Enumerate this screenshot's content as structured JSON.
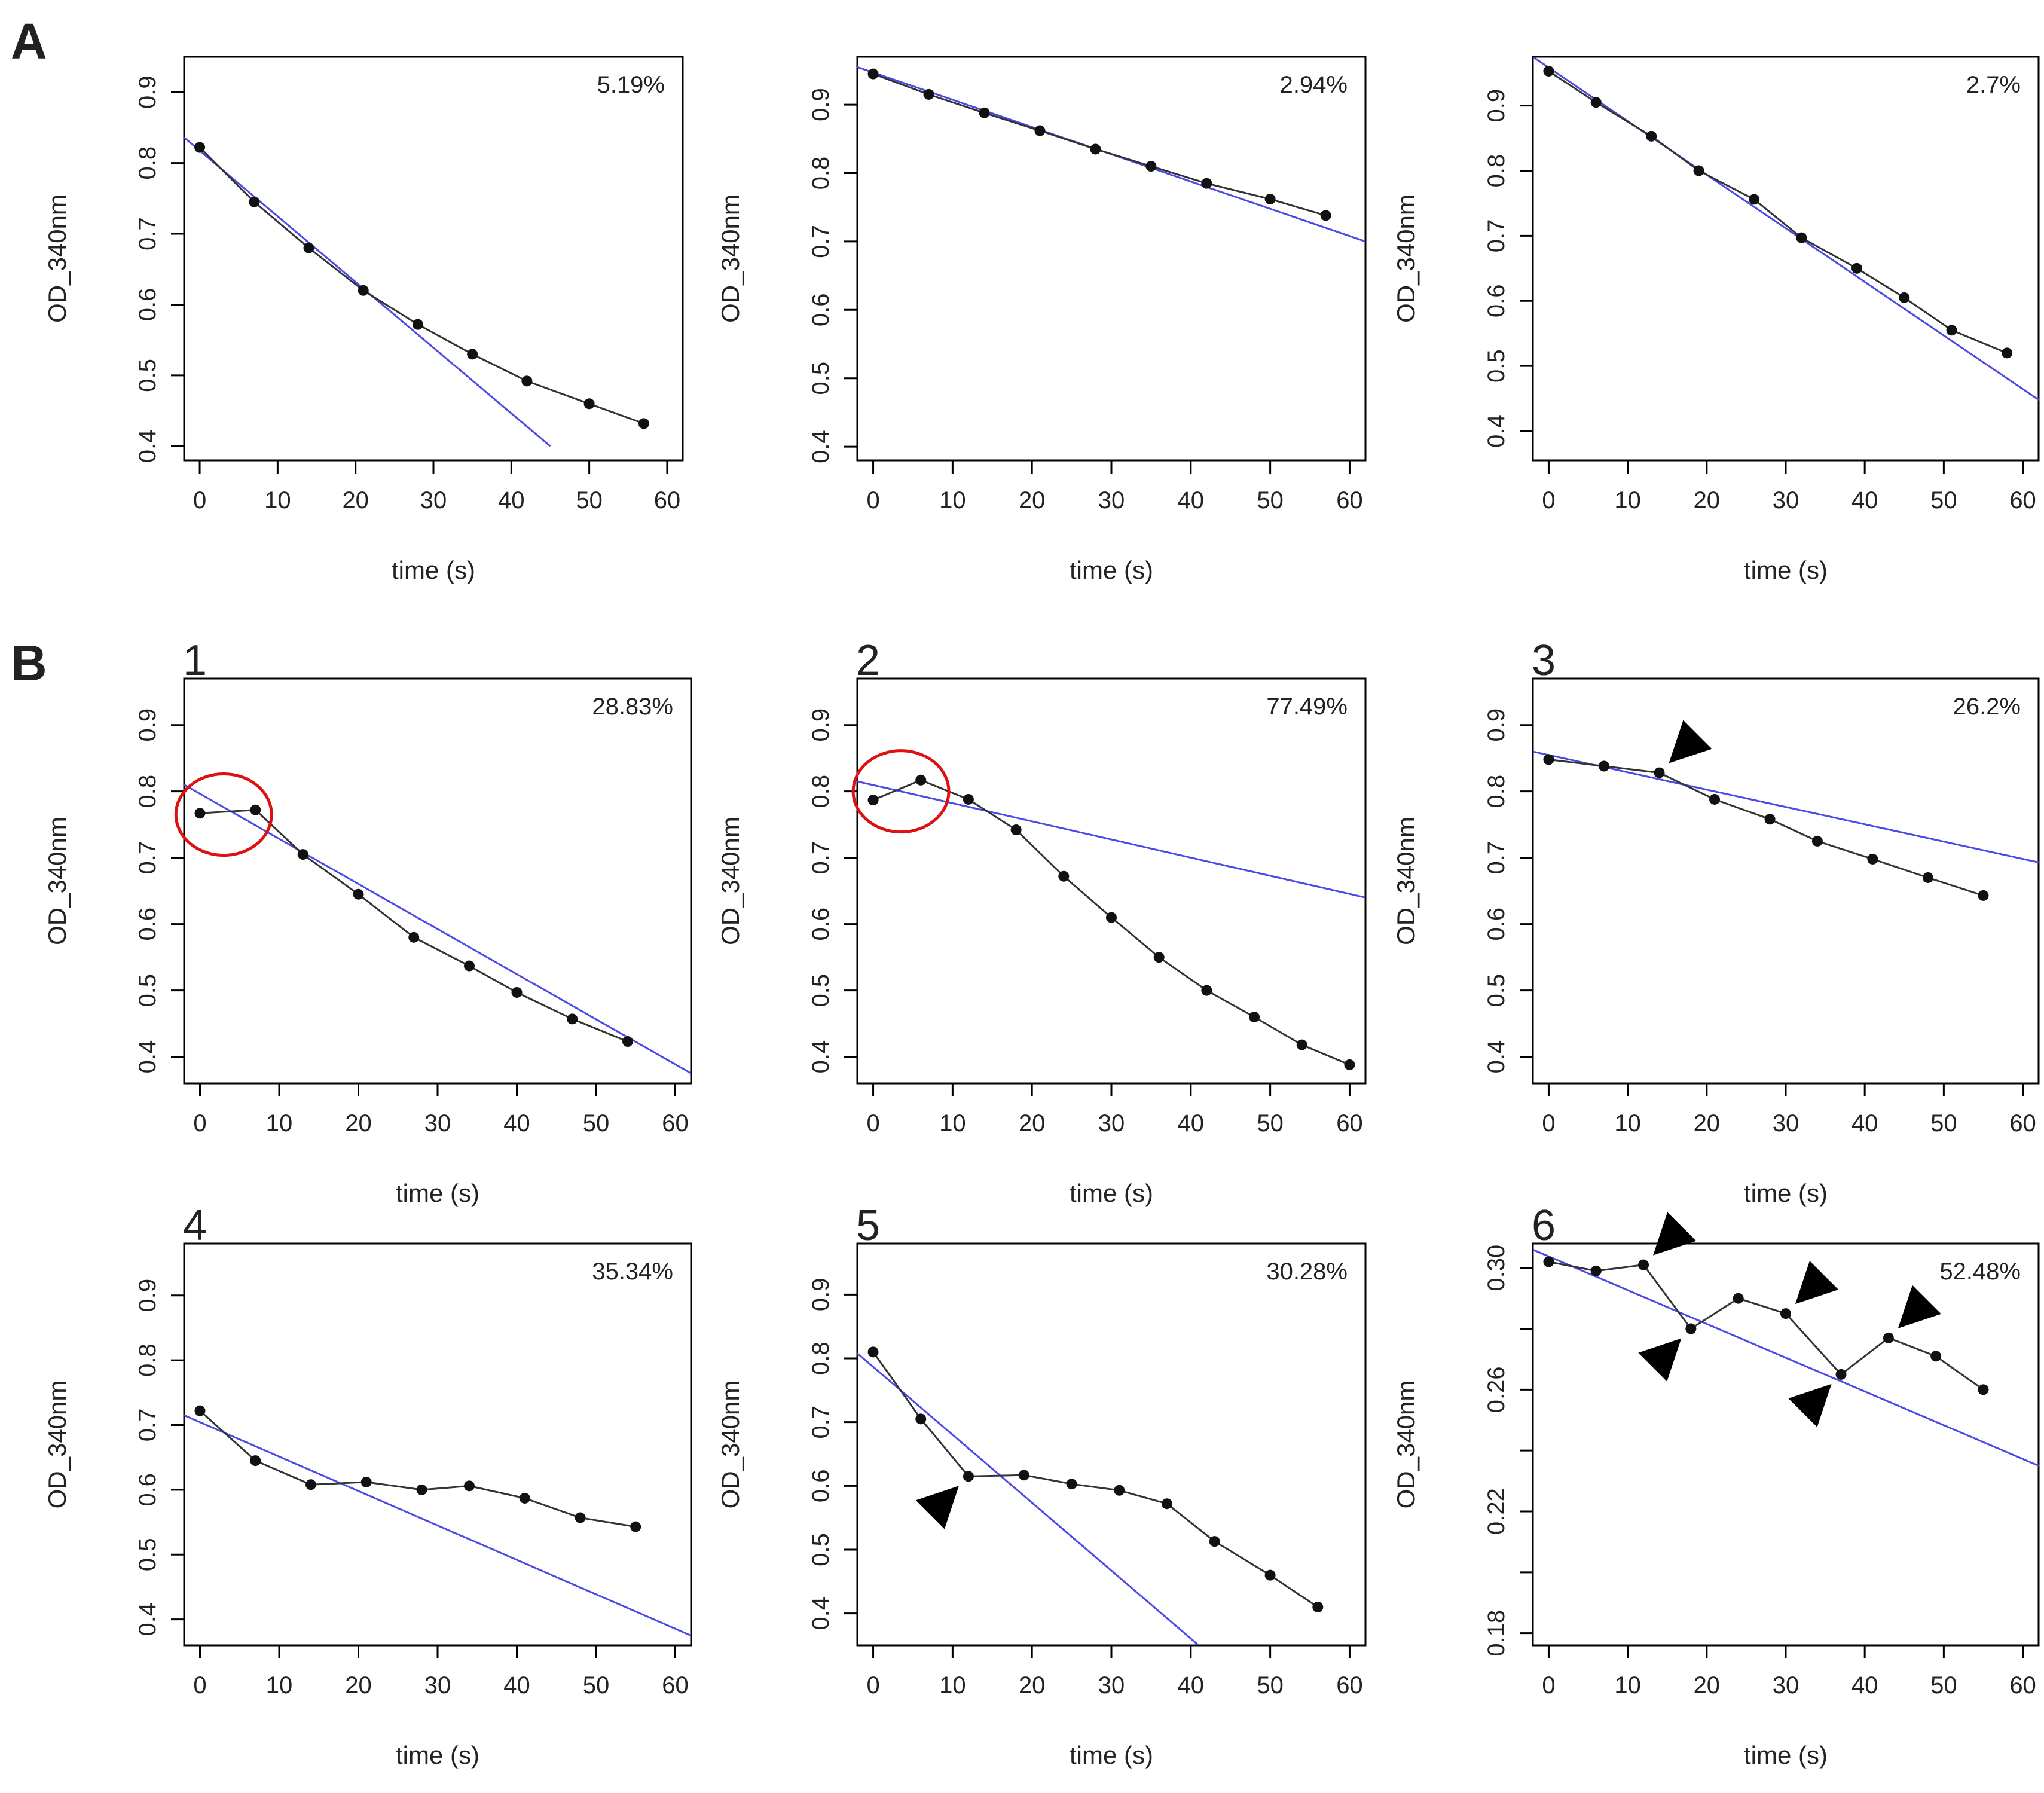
{
  "figure": {
    "section_labels": [
      "A",
      "B"
    ],
    "colors": {
      "fit_line": "#4a4ae6",
      "data_line": "#333333",
      "point": "#111111",
      "circle": "#dd1111",
      "arrowhead": "#000000",
      "frame": "#000000"
    }
  },
  "chart_data": [
    {
      "type": "line",
      "section": "A",
      "panel_number": "",
      "xlabel": "time (s)",
      "ylabel": "OD_340nm",
      "annotation": "5.19%",
      "xlim": [
        -2,
        62
      ],
      "ylim": [
        0.38,
        0.95
      ],
      "xticks": [
        0,
        10,
        20,
        30,
        40,
        50,
        60
      ],
      "yticks": [
        0.4,
        0.5,
        0.6,
        0.7,
        0.8,
        0.9
      ],
      "ytick_labels": [
        "0.4",
        "0.5",
        "0.6",
        "0.7",
        "0.8",
        "0.9"
      ],
      "series": [
        {
          "x": [
            0,
            7,
            14,
            21,
            28,
            35,
            42,
            50,
            57
          ],
          "y": [
            0.822,
            0.745,
            0.68,
            0.62,
            0.572,
            0.53,
            0.492,
            0.46,
            0.432
          ]
        }
      ],
      "fit_line": {
        "x": [
          -2,
          45
        ],
        "y": [
          0.836,
          0.4
        ]
      },
      "red_circles": [],
      "arrowheads": []
    },
    {
      "type": "line",
      "section": "A",
      "panel_number": "",
      "xlabel": "time (s)",
      "ylabel": "OD_340nm",
      "annotation": "2.94%",
      "xlim": [
        -2,
        62
      ],
      "ylim": [
        0.38,
        0.97
      ],
      "xticks": [
        0,
        10,
        20,
        30,
        40,
        50,
        60
      ],
      "yticks": [
        0.4,
        0.5,
        0.6,
        0.7,
        0.8,
        0.9
      ],
      "ytick_labels": [
        "0.4",
        "0.5",
        "0.6",
        "0.7",
        "0.8",
        "0.9"
      ],
      "series": [
        {
          "x": [
            0,
            7,
            14,
            21,
            28,
            35,
            42,
            50,
            57
          ],
          "y": [
            0.945,
            0.915,
            0.888,
            0.862,
            0.835,
            0.81,
            0.785,
            0.762,
            0.738
          ]
        }
      ],
      "fit_line": {
        "x": [
          -2,
          62
        ],
        "y": [
          0.955,
          0.7
        ]
      },
      "red_circles": [],
      "arrowheads": []
    },
    {
      "type": "line",
      "section": "A",
      "panel_number": "",
      "xlabel": "time (s)",
      "ylabel": "OD_340nm",
      "annotation": "2.7%",
      "xlim": [
        -2,
        62
      ],
      "ylim": [
        0.355,
        0.975
      ],
      "xticks": [
        0,
        10,
        20,
        30,
        40,
        50,
        60
      ],
      "yticks": [
        0.4,
        0.5,
        0.6,
        0.7,
        0.8,
        0.9
      ],
      "ytick_labels": [
        "0.4",
        "0.5",
        "0.6",
        "0.7",
        "0.8",
        "0.9"
      ],
      "series": [
        {
          "x": [
            0,
            6,
            13,
            19,
            26,
            32,
            39,
            45,
            51,
            58
          ],
          "y": [
            0.953,
            0.905,
            0.853,
            0.8,
            0.756,
            0.697,
            0.65,
            0.605,
            0.555,
            0.52
          ]
        }
      ],
      "fit_line": {
        "x": [
          -2,
          62
        ],
        "y": [
          0.975,
          0.448
        ]
      },
      "red_circles": [],
      "arrowheads": []
    },
    {
      "type": "line",
      "section": "B",
      "panel_number": "1",
      "xlabel": "time (s)",
      "ylabel": "OD_340nm",
      "annotation": "28.83%",
      "xlim": [
        -2,
        62
      ],
      "ylim": [
        0.36,
        0.97
      ],
      "xticks": [
        0,
        10,
        20,
        30,
        40,
        50,
        60
      ],
      "yticks": [
        0.4,
        0.5,
        0.6,
        0.7,
        0.8,
        0.9
      ],
      "ytick_labels": [
        "0.4",
        "0.5",
        "0.6",
        "0.7",
        "0.8",
        "0.9"
      ],
      "series": [
        {
          "x": [
            0,
            7,
            13,
            20,
            27,
            34,
            40,
            47,
            54
          ],
          "y": [
            0.767,
            0.772,
            0.705,
            0.645,
            0.58,
            0.537,
            0.497,
            0.457,
            0.423
          ]
        }
      ],
      "fit_line": {
        "x": [
          -2,
          62
        ],
        "y": [
          0.81,
          0.375
        ]
      },
      "red_circles": [
        {
          "x": 3,
          "y": 0.765
        }
      ],
      "arrowheads": []
    },
    {
      "type": "line",
      "section": "B",
      "panel_number": "2",
      "xlabel": "time (s)",
      "ylabel": "OD_340nm",
      "annotation": "77.49%",
      "xlim": [
        -2,
        62
      ],
      "ylim": [
        0.36,
        0.97
      ],
      "xticks": [
        0,
        10,
        20,
        30,
        40,
        50,
        60
      ],
      "yticks": [
        0.4,
        0.5,
        0.6,
        0.7,
        0.8,
        0.9
      ],
      "ytick_labels": [
        "0.4",
        "0.5",
        "0.6",
        "0.7",
        "0.8",
        "0.9"
      ],
      "series": [
        {
          "x": [
            0,
            6,
            12,
            18,
            24,
            30,
            36,
            42,
            48,
            54,
            60
          ],
          "y": [
            0.787,
            0.817,
            0.788,
            0.742,
            0.672,
            0.61,
            0.55,
            0.5,
            0.46,
            0.418,
            0.388
          ]
        }
      ],
      "fit_line": {
        "x": [
          -2,
          62
        ],
        "y": [
          0.815,
          0.64
        ]
      },
      "red_circles": [
        {
          "x": 3.5,
          "y": 0.8
        }
      ],
      "arrowheads": []
    },
    {
      "type": "line",
      "section": "B",
      "panel_number": "3",
      "xlabel": "time (s)",
      "ylabel": "OD_340nm",
      "annotation": "26.2%",
      "xlim": [
        -2,
        62
      ],
      "ylim": [
        0.36,
        0.97
      ],
      "xticks": [
        0,
        10,
        20,
        30,
        40,
        50,
        60
      ],
      "yticks": [
        0.4,
        0.5,
        0.6,
        0.7,
        0.8,
        0.9
      ],
      "ytick_labels": [
        "0.4",
        "0.5",
        "0.6",
        "0.7",
        "0.8",
        "0.9"
      ],
      "series": [
        {
          "x": [
            0,
            7,
            14,
            21,
            28,
            34,
            41,
            48,
            55
          ],
          "y": [
            0.848,
            0.838,
            0.828,
            0.788,
            0.758,
            0.725,
            0.698,
            0.67,
            0.643
          ]
        }
      ],
      "fit_line": {
        "x": [
          -2,
          62
        ],
        "y": [
          0.86,
          0.693
        ]
      },
      "red_circles": [],
      "arrowheads": [
        {
          "x": 14,
          "y": 0.828,
          "dir": "up-right"
        }
      ]
    },
    {
      "type": "line",
      "section": "B",
      "panel_number": "4",
      "xlabel": "time (s)",
      "ylabel": "OD_340nm",
      "annotation": "35.34%",
      "xlim": [
        -2,
        62
      ],
      "ylim": [
        0.36,
        0.98
      ],
      "xticks": [
        0,
        10,
        20,
        30,
        40,
        50,
        60
      ],
      "yticks": [
        0.4,
        0.5,
        0.6,
        0.7,
        0.8,
        0.9
      ],
      "ytick_labels": [
        "0.4",
        "0.5",
        "0.6",
        "0.7",
        "0.8",
        "0.9"
      ],
      "series": [
        {
          "x": [
            0,
            7,
            14,
            21,
            28,
            34,
            41,
            48,
            55
          ],
          "y": [
            0.722,
            0.645,
            0.608,
            0.612,
            0.6,
            0.606,
            0.587,
            0.557,
            0.543
          ]
        }
      ],
      "fit_line": {
        "x": [
          -2,
          62
        ],
        "y": [
          0.715,
          0.375
        ]
      },
      "red_circles": [],
      "arrowheads": []
    },
    {
      "type": "line",
      "section": "B",
      "panel_number": "5",
      "xlabel": "time (s)",
      "ylabel": "OD_340nm",
      "annotation": "30.28%",
      "xlim": [
        -2,
        62
      ],
      "ylim": [
        0.35,
        0.98
      ],
      "xticks": [
        0,
        10,
        20,
        30,
        40,
        50,
        60
      ],
      "yticks": [
        0.4,
        0.5,
        0.6,
        0.7,
        0.8,
        0.9
      ],
      "ytick_labels": [
        "0.4",
        "0.5",
        "0.6",
        "0.7",
        "0.8",
        "0.9"
      ],
      "series": [
        {
          "x": [
            0,
            6,
            12,
            19,
            25,
            31,
            37,
            43,
            50,
            56
          ],
          "y": [
            0.81,
            0.705,
            0.615,
            0.617,
            0.603,
            0.593,
            0.572,
            0.513,
            0.46,
            0.41
          ]
        }
      ],
      "fit_line": {
        "x": [
          -2,
          41
        ],
        "y": [
          0.808,
          0.35
        ]
      },
      "red_circles": [],
      "arrowheads": [
        {
          "x": 12,
          "y": 0.615,
          "dir": "down-left"
        }
      ]
    },
    {
      "type": "line",
      "section": "B",
      "panel_number": "6",
      "xlabel": "time (s)",
      "ylabel": "OD_340nm",
      "annotation": "52.48%",
      "xlim": [
        -2,
        62
      ],
      "ylim": [
        0.176,
        0.308
      ],
      "xticks": [
        0,
        10,
        20,
        30,
        40,
        50,
        60
      ],
      "yticks": [
        0.18,
        0.2,
        0.22,
        0.24,
        0.26,
        0.28,
        0.3
      ],
      "ytick_labels": [
        "0.18",
        "",
        "0.22",
        "",
        "0.26",
        "",
        "0.30"
      ],
      "series": [
        {
          "x": [
            0,
            6,
            12,
            18,
            24,
            30,
            37,
            43,
            49,
            55
          ],
          "y": [
            0.302,
            0.299,
            0.301,
            0.28,
            0.29,
            0.285,
            0.265,
            0.277,
            0.271,
            0.26
          ]
        }
      ],
      "fit_line": {
        "x": [
          -2,
          62
        ],
        "y": [
          0.306,
          0.235
        ]
      },
      "red_circles": [],
      "arrowheads": [
        {
          "x": 12,
          "y": 0.301,
          "dir": "up-right"
        },
        {
          "x": 18,
          "y": 0.28,
          "dir": "down-left"
        },
        {
          "x": 30,
          "y": 0.285,
          "dir": "up-right"
        },
        {
          "x": 37,
          "y": 0.265,
          "dir": "down-left"
        },
        {
          "x": 43,
          "y": 0.277,
          "dir": "up-right"
        }
      ]
    }
  ]
}
